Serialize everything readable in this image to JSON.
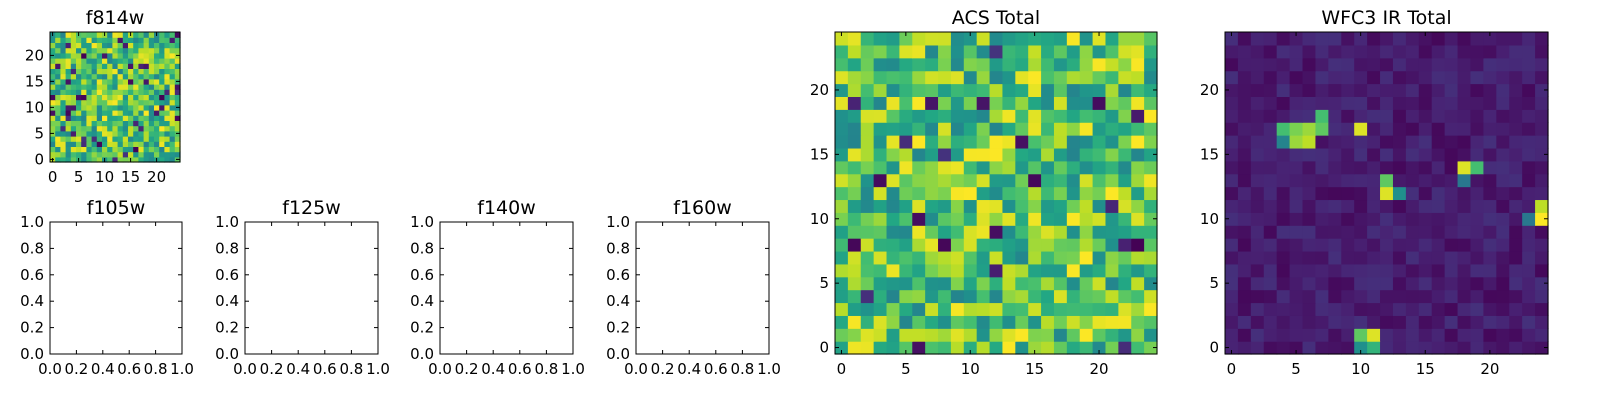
{
  "chart_data": [
    {
      "type": "heatmap",
      "title": "f814w",
      "xlabel": "",
      "ylabel": "",
      "xlim": [
        -0.5,
        24.5
      ],
      "ylim": [
        -0.5,
        24.5
      ],
      "xticks": [
        0,
        5,
        10,
        15,
        20
      ],
      "yticks": [
        0,
        5,
        10,
        15,
        20
      ],
      "colormap": "viridis",
      "grid": false,
      "values": "25x25 random-noise image (values not individually labeled)"
    },
    {
      "type": "heatmap",
      "title": "f105w",
      "xlabel": "",
      "ylabel": "",
      "xlim": [
        0.0,
        1.0
      ],
      "ylim": [
        0.0,
        1.0
      ],
      "xticks": [
        "0.0",
        "0.2",
        "0.4",
        "0.6",
        "0.8",
        "1.0"
      ],
      "yticks": [
        "0.0",
        "0.2",
        "0.4",
        "0.6",
        "0.8",
        "1.0"
      ],
      "empty": true
    },
    {
      "type": "heatmap",
      "title": "f125w",
      "xlabel": "",
      "ylabel": "",
      "xlim": [
        0.0,
        1.0
      ],
      "ylim": [
        0.0,
        1.0
      ],
      "xticks": [
        "0.0",
        "0.2",
        "0.4",
        "0.6",
        "0.8",
        "1.0"
      ],
      "yticks": [
        "0.0",
        "0.2",
        "0.4",
        "0.6",
        "0.8",
        "1.0"
      ],
      "empty": true
    },
    {
      "type": "heatmap",
      "title": "f140w",
      "xlabel": "",
      "ylabel": "",
      "xlim": [
        0.0,
        1.0
      ],
      "ylim": [
        0.0,
        1.0
      ],
      "xticks": [
        "0.0",
        "0.2",
        "0.4",
        "0.6",
        "0.8",
        "1.0"
      ],
      "yticks": [
        "0.0",
        "0.2",
        "0.4",
        "0.6",
        "0.8",
        "1.0"
      ],
      "empty": true
    },
    {
      "type": "heatmap",
      "title": "f160w",
      "xlabel": "",
      "ylabel": "",
      "xlim": [
        0.0,
        1.0
      ],
      "ylim": [
        0.0,
        1.0
      ],
      "xticks": [
        "0.0",
        "0.2",
        "0.4",
        "0.6",
        "0.8",
        "1.0"
      ],
      "yticks": [
        "0.0",
        "0.2",
        "0.4",
        "0.6",
        "0.8",
        "1.0"
      ],
      "empty": true
    },
    {
      "type": "heatmap",
      "title": "ACS Total",
      "xlabel": "",
      "ylabel": "",
      "xlim": [
        -0.5,
        24.5
      ],
      "ylim": [
        -0.5,
        24.5
      ],
      "xticks": [
        0,
        5,
        10,
        15,
        20
      ],
      "yticks": [
        0,
        5,
        10,
        15,
        20
      ],
      "colormap": "viridis",
      "grid": false,
      "values": "25x25 random-noise image (values not individually labeled)"
    },
    {
      "type": "heatmap",
      "title": "WFC3 IR Total",
      "xlabel": "",
      "ylabel": "",
      "xlim": [
        -0.5,
        24.5
      ],
      "ylim": [
        -0.5,
        24.5
      ],
      "xticks": [
        0,
        5,
        10,
        15,
        20
      ],
      "yticks": [
        0,
        5,
        10,
        15,
        20
      ],
      "colormap": "viridis",
      "grid": false,
      "background_level": "low (dark purple)",
      "bright_pixels": [
        {
          "x": 5,
          "y": 16,
          "level": 0.85
        },
        {
          "x": 5,
          "y": 17,
          "level": 0.8
        },
        {
          "x": 6,
          "y": 16,
          "level": 0.9
        },
        {
          "x": 6,
          "y": 17,
          "level": 0.85
        },
        {
          "x": 4,
          "y": 17,
          "level": 0.7
        },
        {
          "x": 7,
          "y": 17,
          "level": 0.75
        },
        {
          "x": 7,
          "y": 18,
          "level": 0.7
        },
        {
          "x": 4,
          "y": 16,
          "level": 0.45
        },
        {
          "x": 10,
          "y": 17,
          "level": 0.95
        },
        {
          "x": 12,
          "y": 13,
          "level": 0.75
        },
        {
          "x": 12,
          "y": 12,
          "level": 0.95
        },
        {
          "x": 13,
          "y": 12,
          "level": 0.5
        },
        {
          "x": 18,
          "y": 14,
          "level": 0.95
        },
        {
          "x": 19,
          "y": 14,
          "level": 0.7
        },
        {
          "x": 18,
          "y": 13,
          "level": 0.4
        },
        {
          "x": 24,
          "y": 11,
          "level": 0.9
        },
        {
          "x": 24,
          "y": 10,
          "level": 1.0
        },
        {
          "x": 23,
          "y": 10,
          "level": 0.4
        },
        {
          "x": 10,
          "y": 1,
          "level": 0.75
        },
        {
          "x": 11,
          "y": 1,
          "level": 0.95
        },
        {
          "x": 10,
          "y": 0,
          "level": 0.5
        },
        {
          "x": 11,
          "y": 0,
          "level": 0.65
        }
      ]
    }
  ]
}
